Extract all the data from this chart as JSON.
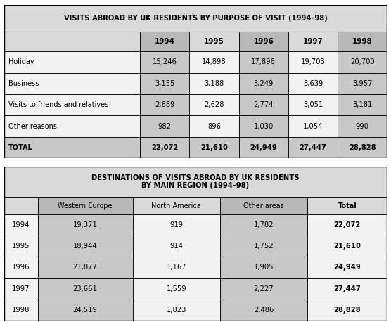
{
  "table1": {
    "title": "VISITS ABROAD BY UK RESIDENTS BY PURPOSE OF VISIT (1994–98)",
    "years": [
      "1994",
      "1995",
      "1996",
      "1997",
      "1998"
    ],
    "rows": [
      {
        "label": "Holiday",
        "values": [
          "15,246",
          "14,898",
          "17,896",
          "19,703",
          "20,700"
        ],
        "bold": false
      },
      {
        "label": "Business",
        "values": [
          "3,155",
          "3,188",
          "3,249",
          "3,639",
          "3,957"
        ],
        "bold": false
      },
      {
        "label": "Visits to friends and relatives",
        "values": [
          "2,689",
          "2,628",
          "2,774",
          "3,051",
          "3,181"
        ],
        "bold": false
      },
      {
        "label": "Other reasons",
        "values": [
          "982",
          "896",
          "1,030",
          "1,054",
          "990"
        ],
        "bold": false
      },
      {
        "label": "TOTAL",
        "values": [
          "22,072",
          "21,610",
          "24,949",
          "27,447",
          "28,828"
        ],
        "bold": true
      }
    ],
    "shaded_year_cols": [
      0,
      2,
      4
    ],
    "title_bg": "#d9d9d9",
    "header_shaded_bg": "#b8b8b8",
    "header_plain_bg": "#d9d9d9",
    "row_label_bg": "#f2f2f2",
    "cell_shaded_bg": "#c8c8c8",
    "cell_plain_bg": "#f2f2f2",
    "total_label_bg": "#c8c8c8",
    "total_cell_bg": "#c8c8c8"
  },
  "table2": {
    "title": "DESTINATIONS OF VISITS ABROAD BY UK RESIDENTS\nBY MAIN REGION (1994–98)",
    "col_headers": [
      "Western Europe",
      "North America",
      "Other areas",
      "Total"
    ],
    "rows": [
      {
        "label": "1994",
        "values": [
          "19,371",
          "919",
          "1,782",
          "22,072"
        ]
      },
      {
        "label": "1995",
        "values": [
          "18,944",
          "914",
          "1,752",
          "21,610"
        ]
      },
      {
        "label": "1996",
        "values": [
          "21,877",
          "1,167",
          "1,905",
          "24,949"
        ]
      },
      {
        "label": "1997",
        "values": [
          "23,661",
          "1,559",
          "2,227",
          "27,447"
        ]
      },
      {
        "label": "1998",
        "values": [
          "24,519",
          "1,823",
          "2,486",
          "28,828"
        ]
      }
    ],
    "shaded_data_cols": [
      0,
      2
    ],
    "title_bg": "#d9d9d9",
    "header_shaded_bg": "#b8b8b8",
    "header_plain_bg": "#d9d9d9",
    "row_label_bg": "#f2f2f2",
    "cell_shaded_bg": "#c8c8c8",
    "cell_plain_bg": "#f2f2f2"
  },
  "fig_bg": "#ffffff",
  "border_color": "#000000",
  "border_lw": 0.6
}
